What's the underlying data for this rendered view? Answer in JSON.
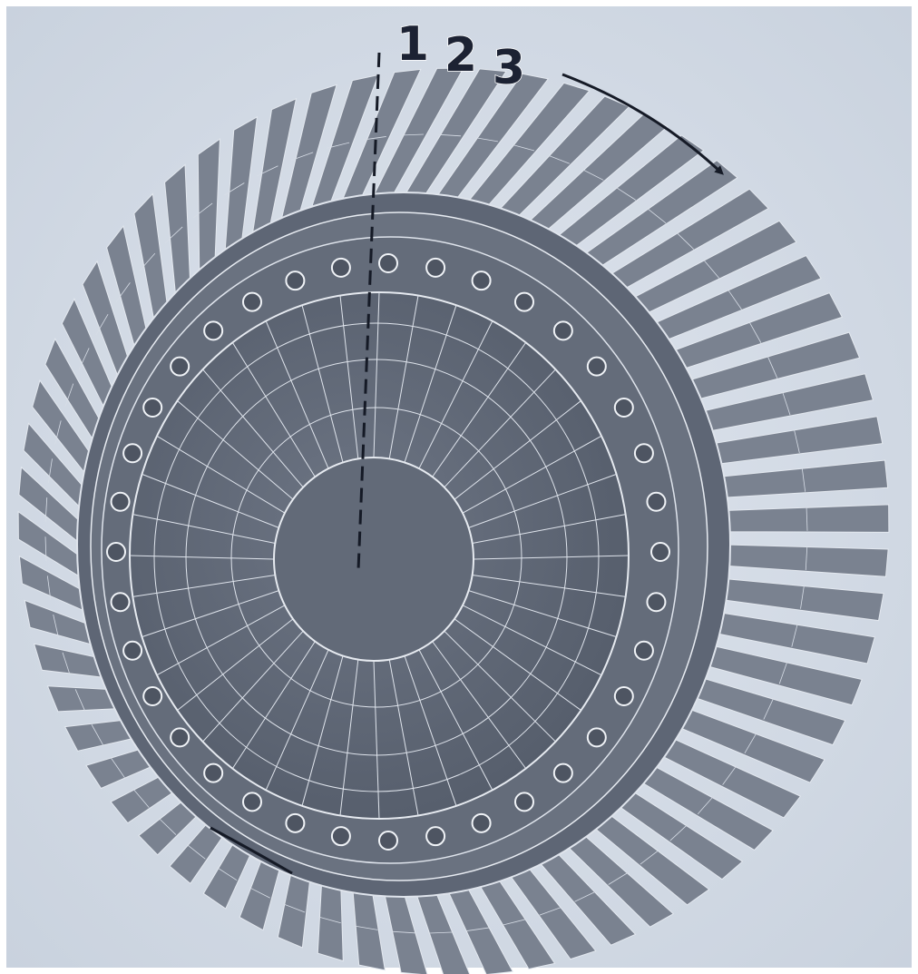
{
  "labels": [
    "1",
    "2",
    "3"
  ]
}
